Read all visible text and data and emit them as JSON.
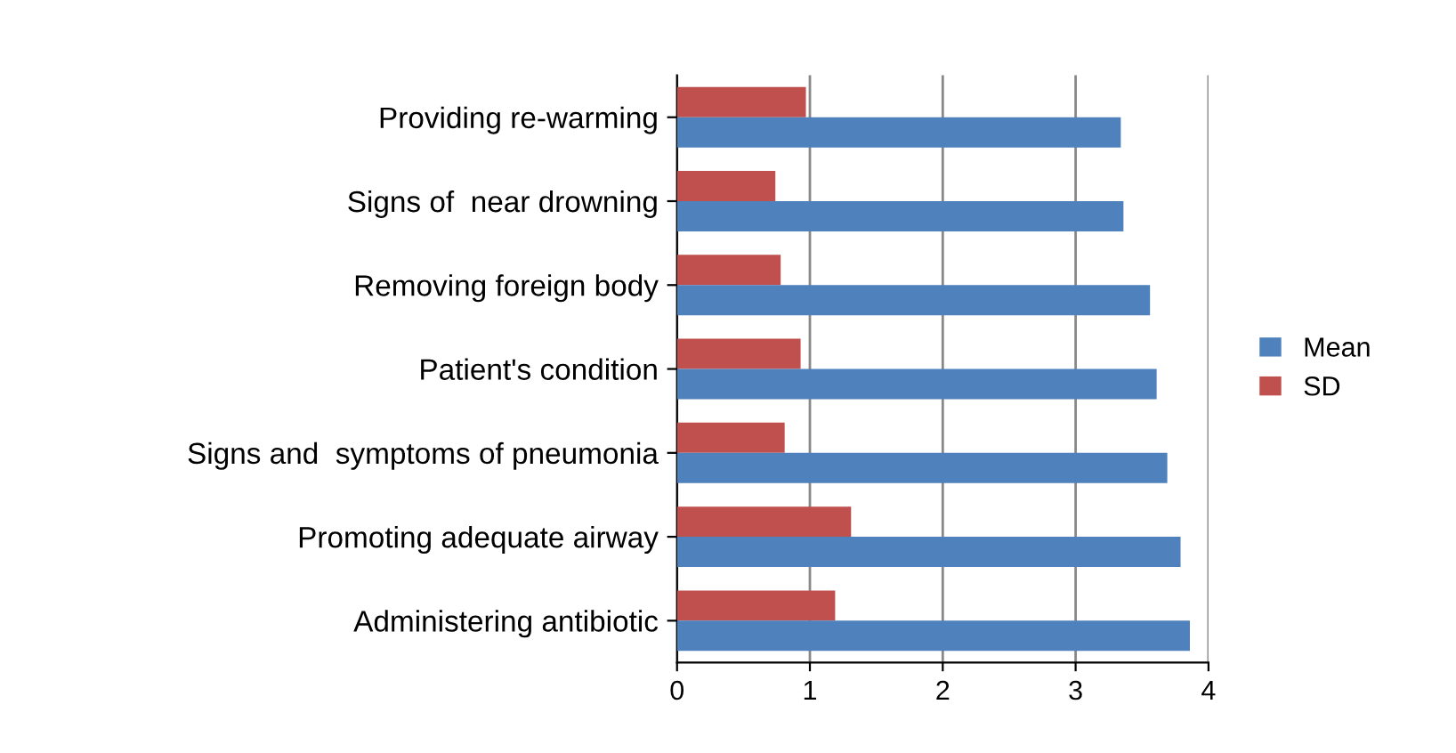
{
  "chart_data": {
    "type": "bar",
    "orientation": "horizontal",
    "categories": [
      "Providing re-warming",
      "Signs of  near drowning",
      "Removing foreign body",
      "Patient's condition",
      "Signs and  symptoms of pneumonia",
      "Promoting adequate airway",
      "Administering antibiotic"
    ],
    "series": [
      {
        "name": "SD",
        "color": "#c0504d",
        "values": [
          0.97,
          0.74,
          0.78,
          0.93,
          0.81,
          1.31,
          1.19
        ]
      },
      {
        "name": "Mean",
        "color": "#4f81bd",
        "values": [
          3.34,
          3.36,
          3.56,
          3.61,
          3.69,
          3.79,
          3.86
        ]
      }
    ],
    "xlim": [
      0,
      4
    ],
    "xticks": [
      0,
      1,
      2,
      3,
      4
    ],
    "grid": "x",
    "legend": "right"
  }
}
